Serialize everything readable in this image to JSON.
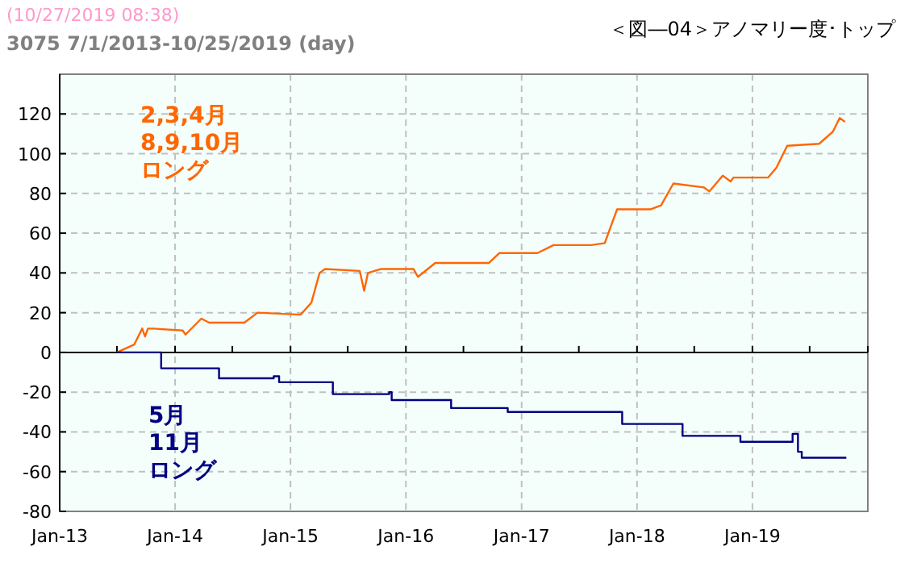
{
  "chart_data": {
    "type": "line",
    "title": "＜図―04＞アノマリー度･トップ",
    "subtitle": "3075 7/1/2013-10/25/2019 (day)",
    "annotations": [
      "(10/27/2019 08:38)"
    ],
    "xlim": [
      "2013-01-01",
      "2020-01-01"
    ],
    "xticks": [
      {
        "value": "2013-01-01",
        "label": "Jan-13"
      },
      {
        "value": "2013-07-01",
        "label": null
      },
      {
        "value": "2014-01-01",
        "label": "Jan-14"
      },
      {
        "value": "2014-07-01",
        "label": null
      },
      {
        "value": "2015-01-01",
        "label": "Jan-15"
      },
      {
        "value": "2015-07-01",
        "label": null
      },
      {
        "value": "2016-01-01",
        "label": "Jan-16"
      },
      {
        "value": "2016-07-01",
        "label": null
      },
      {
        "value": "2017-01-01",
        "label": "Jan-17"
      },
      {
        "value": "2017-07-01",
        "label": null
      },
      {
        "value": "2018-01-01",
        "label": "Jan-18"
      },
      {
        "value": "2018-07-01",
        "label": null
      },
      {
        "value": "2019-01-01",
        "label": "Jan-19"
      },
      {
        "value": "2019-07-01",
        "label": null
      },
      {
        "value": "2020-01-01",
        "label": null
      }
    ],
    "ylim": [
      -80,
      140
    ],
    "yticks": [
      -80,
      -60,
      -40,
      -20,
      0,
      20,
      40,
      60,
      80,
      100,
      120
    ],
    "grid": true,
    "legend": false,
    "line_style": "solid",
    "marker": "none",
    "series": [
      {
        "name": "2,3,4月8,9,10月ロング",
        "color": "#ff6600",
        "x": [
          "2013-07-01",
          "2013-08-25",
          "2013-09-19",
          "2013-09-28",
          "2013-10-07",
          "2013-10-23",
          "2014-01-25",
          "2014-02-03",
          "2014-03-25",
          "2014-04-19",
          "2014-08-08",
          "2014-09-19",
          "2015-02-02",
          "2015-03-08",
          "2015-04-03",
          "2015-04-20",
          "2015-08-08",
          "2015-08-22",
          "2015-09-03",
          "2015-10-15",
          "2016-01-25",
          "2016-02-08",
          "2016-04-03",
          "2016-09-19",
          "2016-10-23",
          "2017-02-20",
          "2017-04-12",
          "2017-08-09",
          "2017-09-21",
          "2017-10-07",
          "2017-10-30",
          "2018-02-12",
          "2018-03-18",
          "2018-04-26",
          "2018-08-01",
          "2018-08-18",
          "2018-09-29",
          "2018-10-24",
          "2018-11-02",
          "2019-02-20",
          "2019-03-18",
          "2019-04-21",
          "2019-07-31",
          "2019-09-12",
          "2019-10-04",
          "2019-10-21"
        ],
        "values": [
          0,
          4,
          12,
          8,
          12,
          12,
          11,
          9,
          17,
          15,
          15,
          20,
          19,
          25,
          40,
          42,
          41,
          31,
          40,
          42,
          42,
          38,
          45,
          45,
          50,
          50,
          54,
          54,
          55,
          62,
          72,
          72,
          74,
          85,
          83,
          81,
          89,
          86,
          88,
          88,
          93,
          104,
          105,
          111,
          118,
          116
        ]
      },
      {
        "name": "5月11月ロング",
        "color": "#000080",
        "type": "step",
        "x": [
          "2013-07-01",
          "2013-11-01",
          "2013-11-18",
          "2014-05-06",
          "2014-05-20",
          "2014-11-09",
          "2014-11-26",
          "2015-05-06",
          "2015-05-15",
          "2015-11-09",
          "2015-11-17",
          "2016-05-06",
          "2016-05-23",
          "2016-11-01",
          "2016-11-18",
          "2017-11-02",
          "2017-11-15",
          "2018-05-07",
          "2018-05-25",
          "2018-11-10",
          "2018-11-24",
          "2019-04-29",
          "2019-05-08",
          "2019-05-25",
          "2019-06-06",
          "2019-10-25"
        ],
        "values": [
          0,
          0,
          -8,
          -8,
          -13,
          -12,
          -15,
          -15,
          -21,
          -20,
          -24,
          -24,
          -28,
          -28,
          -30,
          -30,
          -36,
          -36,
          -42,
          -42,
          -45,
          -45,
          -41,
          -50,
          -53,
          -53
        ]
      }
    ]
  }
}
